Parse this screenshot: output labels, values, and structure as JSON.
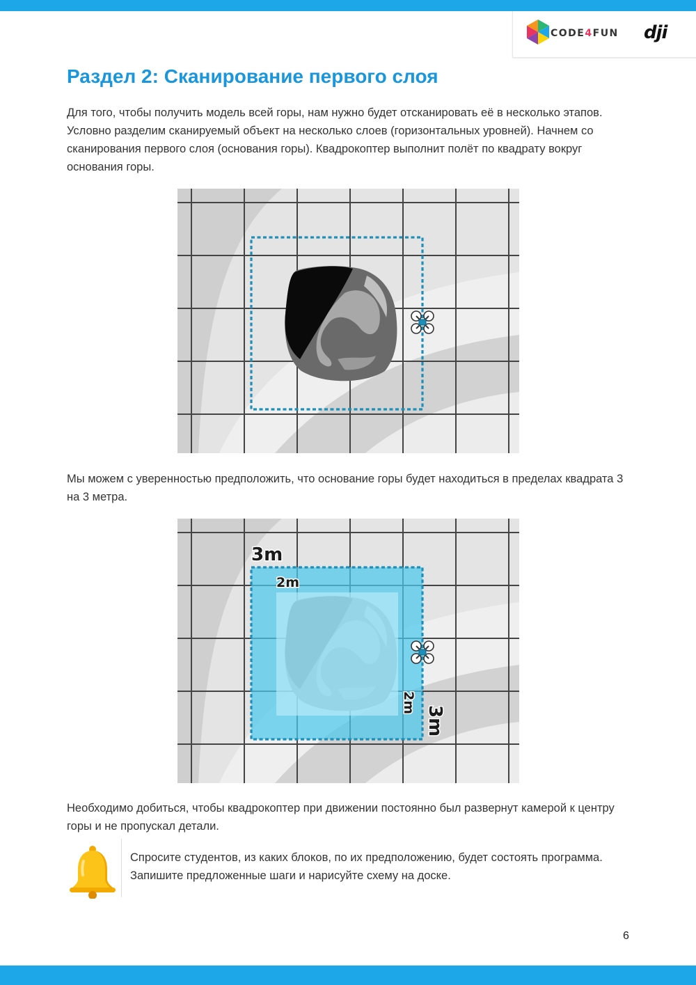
{
  "header": {
    "brand_prefix": "CODE",
    "brand_digit": "4",
    "brand_suffix": "FUN",
    "partner": "dji"
  },
  "title": "Раздел 2: Сканирование первого слоя",
  "paragraphs": {
    "intro": "Для того, чтобы получить модель всей горы, нам нужно будет отсканировать её в несколько этапов. Условно разделим сканируемый объект на несколько слоев (горизонтальных уровней).  Начнем со сканирования первого слоя (основания горы). Квадрокоптер выполнит полёт по квадрату вокруг основания горы.",
    "square": "Мы можем с уверенностью предположить, что основание горы будет находиться в пределах квадрата 3 на 3 метра.",
    "camera": "Необходимо добиться, чтобы квадрокоптер при движении постоянно был развернут камерой к центру горы и не пропускал детали."
  },
  "figure2_labels": {
    "outer_top": "3m",
    "inner_top": "2m",
    "inner_side": "2m",
    "outer_side": "3m"
  },
  "note": {
    "icon": "bell-icon",
    "text": "Спросите студентов, из каких блоков, по их предположению, будет состоять программа. Запишите предложенные шаги и нарисуйте схему на доске."
  },
  "page_number": "6",
  "colors": {
    "accent": "#1da7e8",
    "title": "#1a97dc",
    "path": "#1d8fb8",
    "area_outer": "#4cc8ec",
    "area_inner": "#bfeefb"
  }
}
